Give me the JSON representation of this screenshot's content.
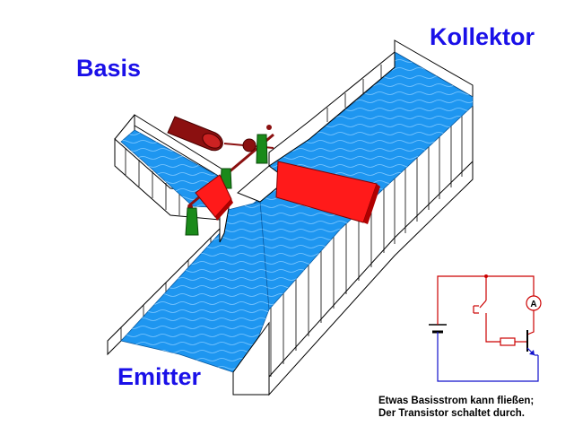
{
  "labels": {
    "collector": "Kollektor",
    "base": "Basis",
    "emitter": "Emitter"
  },
  "caption": {
    "line1": "Etwas Basisstrom kann fließen;",
    "line2": "Der Transistor schaltet durch."
  },
  "circuit": {
    "ammeter_symbol": "A"
  },
  "colors": {
    "label_blue": "#1a10e8",
    "water": "#1e96f0",
    "gate_red": "#ff1a1a",
    "roller": "#8b1010",
    "post_green": "#1a8a1a",
    "wire_red": "#cc0000",
    "wire_blue": "#1010cc"
  },
  "icons": [
    "roller-icon",
    "green-post-icon",
    "red-gate-icon",
    "ammeter-icon",
    "battery-icon",
    "switch-icon",
    "resistor-icon",
    "transistor-icon"
  ]
}
